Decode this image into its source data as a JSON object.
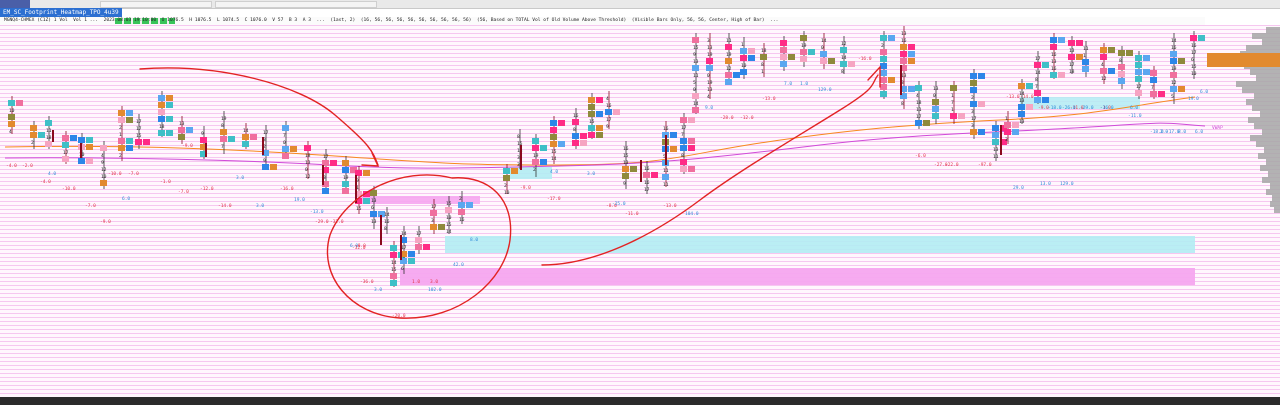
{
  "window": {
    "chart_tab_label": "EM_SC_Footprint_Heatmap_TPO_4u39",
    "info_line": "MGNQ4-CHMEX (C1Z) 1 Vol  Vol 1 ...  2023.08.03 19:10:00  O 1076.5  H 1076.5  L 1074.5  C 1076.0  V 57  B 3  A 3  ...  (1ast, 2)  (16, 56, 56, 56, 56, 56, 56, 56, 56, 56)  (56, Based on TOTAL Vol of Old Volume Above Threshold)  (Visible Bars Only, 56, 56, Center, High of Bar)  ..."
  },
  "annotations": {
    "value_labels_red": [
      "-4.0",
      "-2.0",
      "-4.0",
      "-10.0",
      "-7.0",
      "-9.0",
      "-10.0",
      "-7.0",
      "-1.0",
      "-7.0",
      "-9.0",
      "-14.0",
      "-12.0",
      "-16.0",
      "-29.0",
      "-32.0",
      "-8.0",
      "-9.0",
      "-17.0",
      "-8.0",
      "-11.0",
      "-13.0",
      "-28.0",
      "-12.0",
      "-13.0",
      "-16.0",
      "-6.0",
      "-27.0",
      "-22.0",
      "-97.0",
      "-13.0",
      "-14.0",
      "-9.0",
      "-11.0",
      "-1.0"
    ],
    "value_labels_blue": [
      "4.0",
      "6.0",
      "3.0",
      "3.0",
      "19.0",
      "-13.0",
      "6.0",
      "42.0",
      "8.0",
      "3.0",
      "-25.0",
      "104.0",
      "4.0",
      "9.0",
      "7.0",
      "1.0",
      "129.0",
      "6.0",
      "29.0",
      "13.0",
      "129.0",
      "2.0",
      "8.0",
      "19.0",
      "6.0",
      "-11.0",
      "-18.0",
      "-26.0",
      "-29.0",
      "-36.0",
      "-18.0",
      "-17.0",
      "6.0"
    ],
    "loop_labels": [
      "-32.0",
      "-36.0",
      "102.0",
      "3.0",
      "-20.0",
      "1.0",
      "3.0"
    ],
    "right_label": "VWAP"
  },
  "colors": {
    "sell_strong": "#ff2b86",
    "sell_medium": "#f06f9e",
    "sell_light": "#f6a4c2",
    "buy": "#2c86e8",
    "buy_light": "#5aa7f0",
    "neutral": "#e28a2f",
    "olive": "#8f8a3c",
    "teal": "#3ebfc7",
    "hvn_pink": "#f6a6ef",
    "hvn_cyan": "#b3ecf3",
    "vwap_orange": "#f7891f",
    "vwap_magenta": "#d04bd8",
    "drawing_red": "#e22323",
    "profile_gray": "#a6a6a6"
  }
}
